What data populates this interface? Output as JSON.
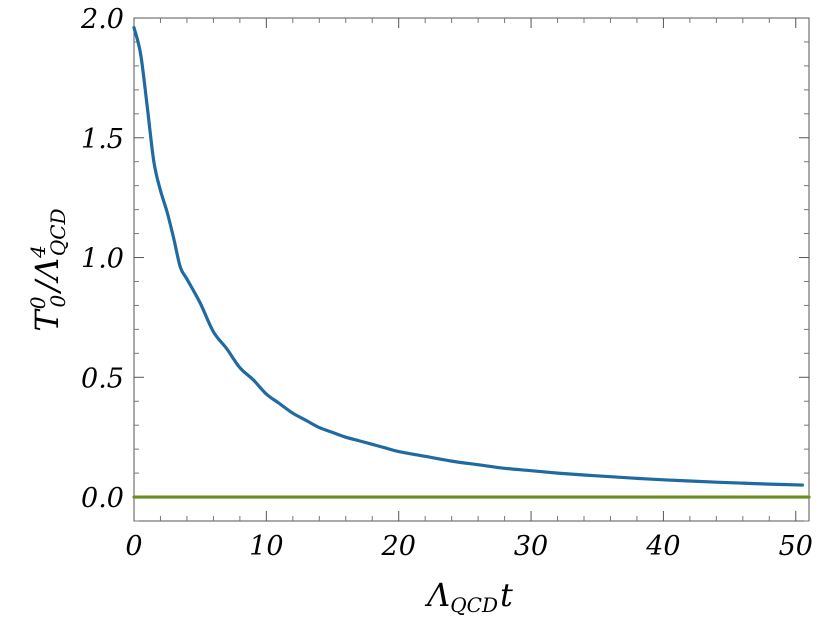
{
  "chart_data": {
    "type": "line",
    "xlabel": {
      "main": "Λ",
      "sub": "QCD",
      "tail": "t"
    },
    "ylabel": {
      "main": "T",
      "sub": "0",
      "sup": "0",
      "slash": "/Λ",
      "sub2": "QCD",
      "sup2": "4"
    },
    "xlim": [
      0,
      51
    ],
    "ylim": [
      -0.1,
      2.0
    ],
    "xticks": [
      0,
      10,
      20,
      30,
      40,
      50
    ],
    "xtick_labels": [
      "0",
      "10",
      "20",
      "30",
      "40",
      "50"
    ],
    "yticks": [
      0.0,
      0.5,
      1.0,
      1.5,
      2.0
    ],
    "ytick_labels": [
      "0.0",
      "0.5",
      "1.0",
      "1.5",
      "2.0"
    ],
    "grid": false,
    "series": [
      {
        "color": "#1f6aa0",
        "x": [
          0,
          0.5,
          1,
          1.5,
          2,
          2.5,
          3,
          3.5,
          4,
          5,
          6,
          7,
          8,
          9,
          10,
          11,
          12,
          13,
          14,
          15,
          16,
          17,
          18,
          19,
          20,
          22,
          24,
          26,
          28,
          30,
          32,
          34,
          36,
          38,
          40,
          42,
          44,
          46,
          48,
          50.5
        ],
        "y": [
          1.96,
          1.85,
          1.63,
          1.4,
          1.28,
          1.19,
          1.08,
          0.96,
          0.91,
          0.81,
          0.69,
          0.62,
          0.54,
          0.49,
          0.43,
          0.39,
          0.35,
          0.32,
          0.29,
          0.27,
          0.25,
          0.235,
          0.22,
          0.205,
          0.19,
          0.17,
          0.15,
          0.135,
          0.12,
          0.11,
          0.1,
          0.092,
          0.085,
          0.078,
          0.072,
          0.067,
          0.062,
          0.058,
          0.054,
          0.05
        ]
      },
      {
        "color": "#6b8e23",
        "x": [
          0,
          51
        ],
        "y": [
          0.0,
          0.0
        ]
      }
    ]
  }
}
